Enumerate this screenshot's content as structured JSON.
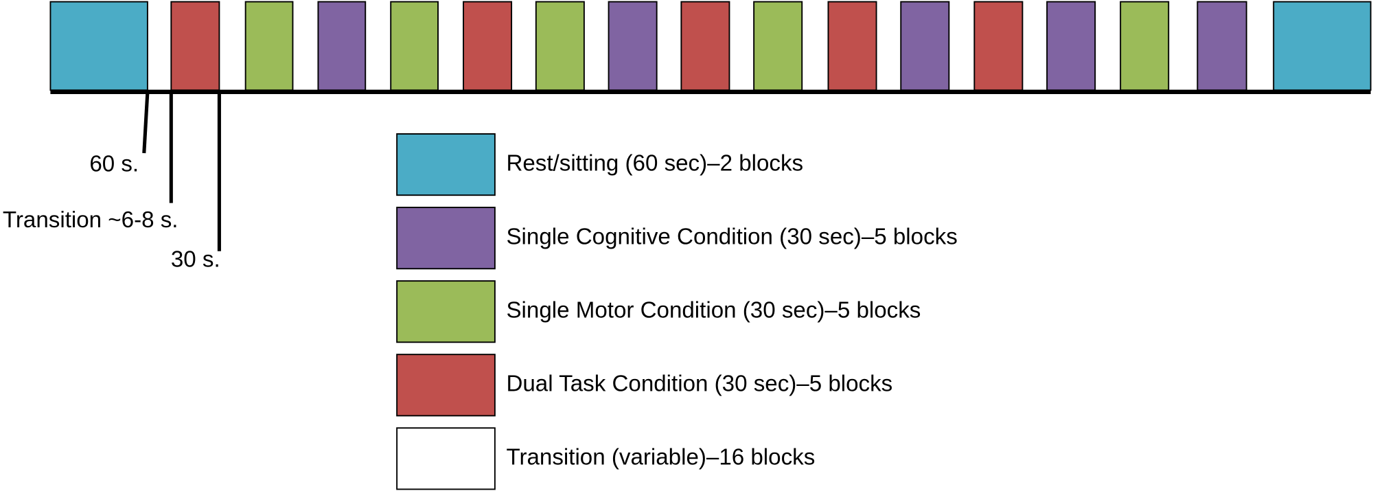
{
  "annotations": [
    "60 s.",
    "Transition ~6-8 s.",
    "30 s."
  ],
  "legend": [
    {
      "label": "Rest/sitting (60 sec)–2 blocks",
      "color": "#4bacc6"
    },
    {
      "label": "Single Cognitive Condition (30 sec)–5 blocks",
      "color": "#8064a2"
    },
    {
      "label": "Single Motor Condition (30 sec)–5 blocks",
      "color": "#9bbb59"
    },
    {
      "label": "Dual Task Condition (30 sec)–5 blocks",
      "color": "#c0504d"
    },
    {
      "label": "Transition (variable)–16 blocks",
      "color": "#ffffff"
    }
  ]
}
